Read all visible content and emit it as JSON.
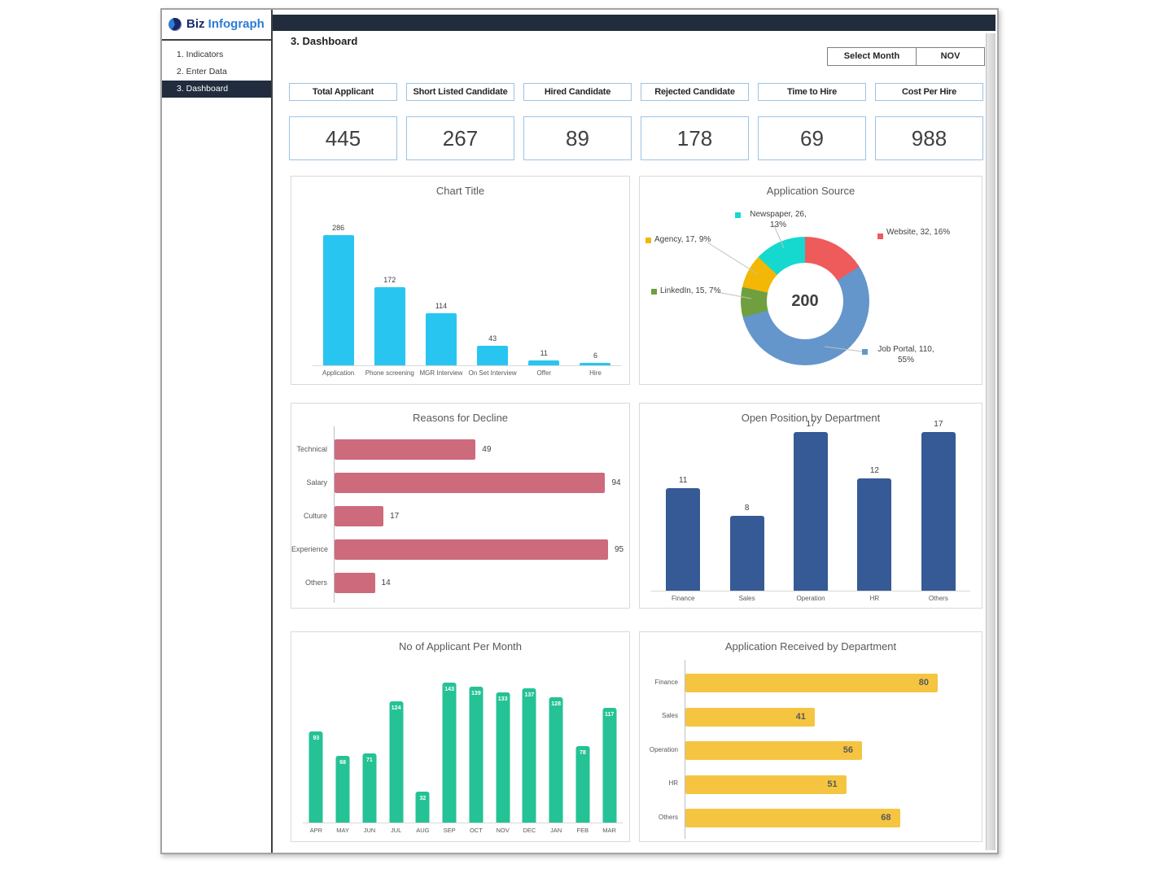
{
  "sidebar": {
    "logo": {
      "brand_bold": "Biz",
      "brand_accent": "Infograph"
    },
    "items": [
      {
        "label": "1. Indicators",
        "active": false
      },
      {
        "label": "2. Enter Data",
        "active": false
      },
      {
        "label": "3. Dashboard",
        "active": true
      }
    ]
  },
  "header": {
    "page_title": "3. Dashboard",
    "month_selector": {
      "label": "Select Month",
      "value": "NOV"
    }
  },
  "kpis": [
    {
      "label": "Total Applicant",
      "value": "445"
    },
    {
      "label": "Short Listed Candidate",
      "value": "267"
    },
    {
      "label": "Hired Candidate",
      "value": "89"
    },
    {
      "label": "Rejected Candidate",
      "value": "178"
    },
    {
      "label": "Time to Hire",
      "value": "69"
    },
    {
      "label": "Cost Per Hire",
      "value": "988"
    }
  ],
  "palette": {
    "topbar": "#212c3d",
    "sidebar_active_bg": "#212d3e",
    "brand_blue": "#2e7bd6",
    "kpi_border": "#9cc3e5",
    "card_border": "#d9d9d9",
    "title_gray": "#595959"
  },
  "chart_data": [
    {
      "id": "hiring-funnel",
      "type": "bar",
      "title": "Chart Title",
      "categories": [
        "Application",
        "Phone screening",
        "MGR Interview",
        "On Set Interview",
        "Offer",
        "Hire"
      ],
      "values": [
        286,
        172,
        114,
        43,
        11,
        6
      ],
      "color": "#29c5f1",
      "data_labels": "above",
      "axis_visible": false
    },
    {
      "id": "application-source",
      "type": "pie",
      "donut": true,
      "title": "Application Source",
      "center_label": "200",
      "total": 200,
      "slices": [
        {
          "label": "Website",
          "value": 32,
          "pct": "16%",
          "color": "#ef5a5a",
          "legend": "Website, 32, 16%"
        },
        {
          "label": "Job Portal",
          "value": 110,
          "pct": "55%",
          "color": "#6496cb",
          "legend": "Job Portal, 110, 55%"
        },
        {
          "label": "LinkedIn",
          "value": 15,
          "pct": "7%",
          "color": "#6f9f3e",
          "legend": "LinkedIn, 15, 7%"
        },
        {
          "label": "Agency",
          "value": 17,
          "pct": "9%",
          "color": "#f3b705",
          "legend": "Agency, 17, 9%"
        },
        {
          "label": "Newspaper",
          "value": 26,
          "pct": "13%",
          "color": "#15d9ce",
          "legend": "Newspaper, 26, 13%"
        }
      ],
      "legend_position": "around"
    },
    {
      "id": "reasons-for-decline",
      "type": "bar",
      "orientation": "horizontal",
      "title": "Reasons for Decline",
      "categories": [
        "Technical",
        "Salary",
        "Culture",
        "Experience",
        "Others"
      ],
      "values": [
        49,
        94,
        17,
        95,
        14
      ],
      "color": "#cd6a7c",
      "data_labels": "outside"
    },
    {
      "id": "open-position-by-department",
      "type": "bar",
      "title": "Open Position by Department",
      "categories": [
        "Finance",
        "Sales",
        "Operation",
        "HR",
        "Others"
      ],
      "values": [
        11,
        8,
        17,
        12,
        17
      ],
      "color": "#365a96",
      "data_labels": "above",
      "note": "Operation data label is partially hidden behind the chart title"
    },
    {
      "id": "applicants-per-month",
      "type": "bar",
      "title": "No of Applicant Per Month",
      "categories": [
        "APR",
        "MAY",
        "JUN",
        "JUL",
        "AUG",
        "SEP",
        "OCT",
        "NOV",
        "DEC",
        "JAN",
        "FEB",
        "MAR"
      ],
      "values": [
        93,
        68,
        71,
        124,
        32,
        143,
        139,
        133,
        137,
        128,
        78,
        117
      ],
      "color": "#25c295",
      "data_labels": "inside-white"
    },
    {
      "id": "application-received-by-department",
      "type": "bar",
      "orientation": "horizontal",
      "title": "Application Received by Department",
      "categories": [
        "Finance",
        "Sales",
        "Operation",
        "HR",
        "Others"
      ],
      "values": [
        80,
        41,
        56,
        51,
        68
      ],
      "color": "#f5c542",
      "data_labels": "inside-dark"
    }
  ]
}
